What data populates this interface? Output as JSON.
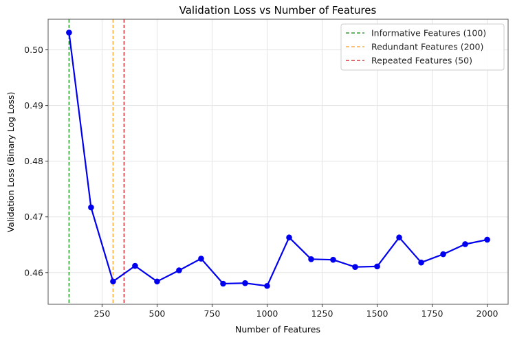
{
  "chart_data": {
    "type": "line",
    "title": "Validation Loss vs Number of Features",
    "xlabel": "Number of Features",
    "ylabel": "Validation Loss (Binary Log Loss)",
    "xlim": [
      5,
      2095
    ],
    "ylim": [
      0.4543,
      0.5055
    ],
    "xticks": [
      250,
      500,
      750,
      1000,
      1250,
      1500,
      1750,
      2000
    ],
    "xtick_labels": [
      "250",
      "500",
      "750",
      "1000",
      "1250",
      "1500",
      "1750",
      "2000"
    ],
    "yticks": [
      0.46,
      0.47,
      0.48,
      0.49,
      0.5
    ],
    "ytick_labels": [
      "0.46",
      "0.47",
      "0.48",
      "0.49",
      "0.50"
    ],
    "grid": true,
    "legend_position": "upper right",
    "x": [
      100,
      200,
      300,
      400,
      500,
      600,
      700,
      800,
      900,
      1000,
      1100,
      1200,
      1300,
      1400,
      1500,
      1600,
      1700,
      1800,
      1900,
      2000
    ],
    "series": [
      {
        "name": "Validation Loss",
        "color": "#0000ee",
        "marker": "circle",
        "values": [
          0.5031,
          0.4717,
          0.4584,
          0.4612,
          0.4584,
          0.4604,
          0.4625,
          0.458,
          0.4581,
          0.4576,
          0.4663,
          0.4624,
          0.4623,
          0.461,
          0.4611,
          0.4663,
          0.4618,
          0.4633,
          0.4651,
          0.4659
        ]
      }
    ],
    "vlines": [
      {
        "x": 100,
        "label": "Informative Features (100)",
        "color": "#2ca02c",
        "style": "dashed"
      },
      {
        "x": 300,
        "label": "Redundant Features (200)",
        "color": "#ffae3a",
        "style": "dashed"
      },
      {
        "x": 350,
        "label": "Repeated Features (50)",
        "color": "#e0323c",
        "style": "dashed"
      }
    ]
  },
  "legend": {
    "items": [
      {
        "label": "Informative Features (100)",
        "color": "#2ca02c"
      },
      {
        "label": "Redundant Features (200)",
        "color": "#ffae3a"
      },
      {
        "label": "Repeated Features (50)",
        "color": "#e0323c"
      }
    ]
  }
}
